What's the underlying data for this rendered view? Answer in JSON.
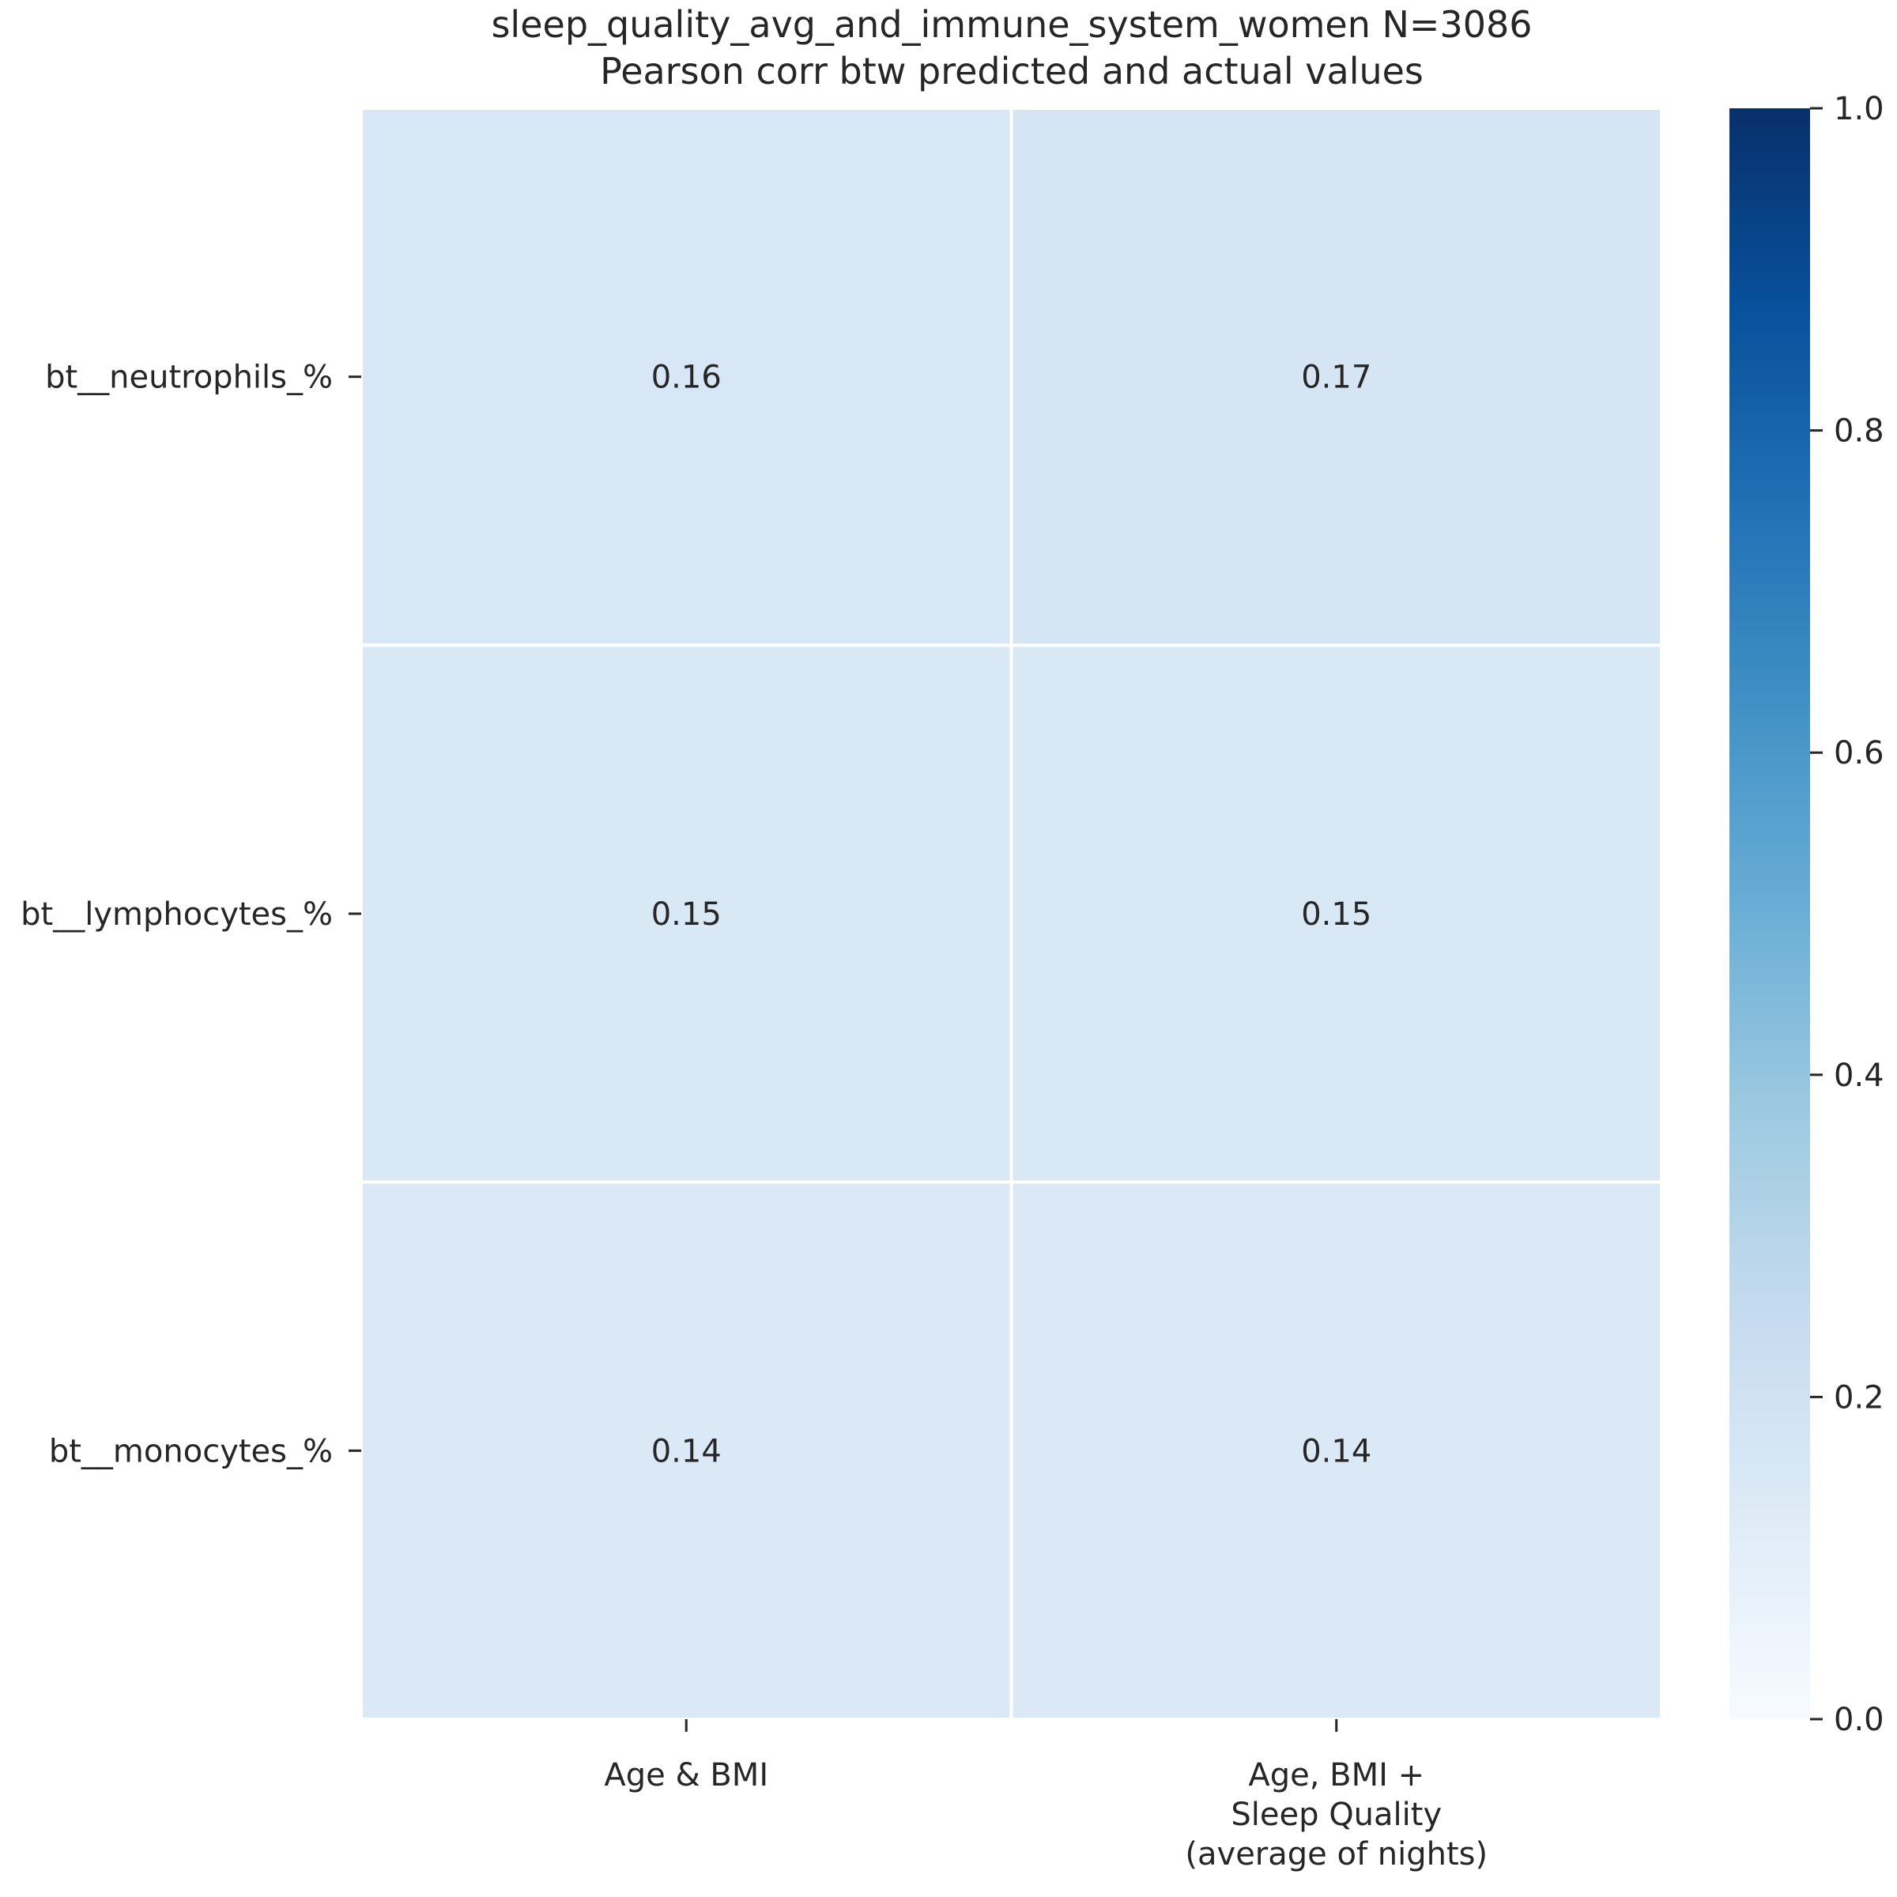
{
  "chart_data": {
    "type": "heatmap",
    "title_lines": [
      "sleep_quality_avg_and_immune_system_women N=3086",
      "Pearson corr btw predicted and actual values"
    ],
    "rows": [
      "bt__neutrophils_%",
      "bt__lymphocytes_%",
      "bt__monocytes_%"
    ],
    "columns": [
      [
        "Age & BMI"
      ],
      [
        "Age, BMI +",
        "Sleep Quality",
        "(average of nights)"
      ]
    ],
    "values": [
      [
        0.16,
        0.17
      ],
      [
        0.15,
        0.15
      ],
      [
        0.14,
        0.14
      ]
    ],
    "cell_labels": [
      [
        "0.16",
        "0.17"
      ],
      [
        "0.15",
        "0.15"
      ],
      [
        "0.14",
        "0.14"
      ]
    ],
    "colorbar": {
      "colormap": "Blues",
      "range": [
        0.0,
        1.0
      ],
      "ticks": [
        0.0,
        0.2,
        0.4,
        0.6,
        0.8,
        1.0
      ],
      "tick_labels": [
        "0.0",
        "0.2",
        "0.4",
        "0.6",
        "0.8",
        "1.0"
      ]
    },
    "grid": false,
    "legend": "colorbar-right"
  }
}
